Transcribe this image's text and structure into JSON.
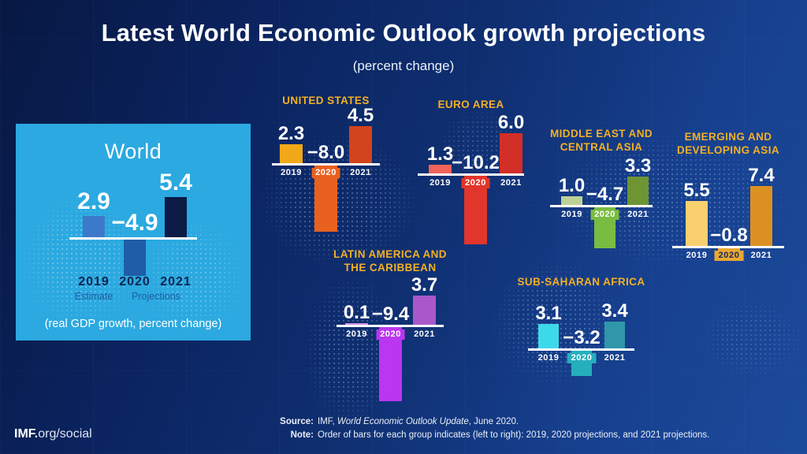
{
  "header": {
    "title": "Latest World Economic Outlook growth projections",
    "subtitle": "(percent change)"
  },
  "world_panel": {
    "title": "World",
    "caption": "(real GDP growth, percent change)",
    "estimate_label": "Estimate",
    "projections_label": "Projections",
    "bg_color": "#2BA9E0"
  },
  "footer": {
    "brand_bold": "IMF.",
    "brand_rest": "org/social",
    "source_label": "Source:",
    "source_pre": "IMF, ",
    "source_italic": "World Economic Outlook Update",
    "source_post": ", June 2020.",
    "note_label": "Note:",
    "note_text": "Order of bars for each group indicates (left to right): 2019, 2020 projections, and 2021 projections."
  },
  "accent_colors": {
    "region_title_gold": "#F3B024",
    "baseline_white": "#FFFFFF",
    "background_navy": "#0F2F71",
    "world_year_navy": "#0D2550"
  },
  "chart_data": [
    {
      "id": "world",
      "type": "bar",
      "title": "World",
      "categories": [
        "2019",
        "2020",
        "2021"
      ],
      "values": [
        2.9,
        -4.9,
        5.4
      ],
      "value_labels": [
        "2.9",
        "−4.9",
        "5.4"
      ],
      "bar_colors": [
        "#3D79CB",
        "#1F5DA9",
        "#0B1B45"
      ],
      "year_label_color": "#0D2550",
      "ylabel": "real GDP growth, percent change"
    },
    {
      "id": "united-states",
      "type": "bar",
      "title": "United States",
      "title_lines": [
        "UNITED STATES"
      ],
      "categories": [
        "2019",
        "2020",
        "2021"
      ],
      "values": [
        2.3,
        -8.0,
        4.5
      ],
      "value_labels": [
        "2.3",
        "−8.0",
        "4.5"
      ],
      "bar_colors": [
        "#F2A818",
        "#E8611F",
        "#D2441B"
      ],
      "year_negative_text": "#FFFFFF"
    },
    {
      "id": "euro-area",
      "type": "bar",
      "title": "Euro Area",
      "title_lines": [
        "EURO AREA"
      ],
      "categories": [
        "2019",
        "2020",
        "2021"
      ],
      "values": [
        1.3,
        -10.2,
        6.0
      ],
      "value_labels": [
        "1.3",
        "−10.2",
        "6.0"
      ],
      "bar_colors": [
        "#F0625A",
        "#E2352B",
        "#D22F28"
      ],
      "year_negative_text": "#FFFFFF"
    },
    {
      "id": "middle-east-and-central-asia",
      "type": "bar",
      "title": "Middle East and Central Asia",
      "title_lines": [
        "MIDDLE EAST AND",
        "CENTRAL ASIA"
      ],
      "categories": [
        "2019",
        "2020",
        "2021"
      ],
      "values": [
        1.0,
        -4.7,
        3.3
      ],
      "value_labels": [
        "1.0",
        "−4.7",
        "3.3"
      ],
      "bar_colors": [
        "#BDD096",
        "#79BC41",
        "#6E9434"
      ],
      "year_negative_text": "#FFFFFF"
    },
    {
      "id": "emerging-and-developing-asia",
      "type": "bar",
      "title": "Emerging and Developing Asia",
      "title_lines": [
        "EMERGING AND",
        "DEVELOPING ASIA"
      ],
      "categories": [
        "2019",
        "2020",
        "2021"
      ],
      "values": [
        5.5,
        -0.8,
        7.4
      ],
      "value_labels": [
        "5.5",
        "−0.8",
        "7.4"
      ],
      "bar_colors": [
        "#F8D06E",
        "#EAA832",
        "#DB9122"
      ],
      "year_negative_text": "#0E2A5E"
    },
    {
      "id": "latin-america-and-the-caribbean",
      "type": "bar",
      "title": "Latin America and the Caribbean",
      "title_lines": [
        "LATIN AMERICA AND",
        "THE CARIBBEAN"
      ],
      "categories": [
        "2019",
        "2020",
        "2021"
      ],
      "values": [
        0.1,
        -9.4,
        3.7
      ],
      "value_labels": [
        "0.1",
        "−9.4",
        "3.7"
      ],
      "bar_colors": [
        "#CF92DF",
        "#BA36F0",
        "#A958C9"
      ],
      "year_negative_text": "#FFFFFF"
    },
    {
      "id": "sub-saharan-africa",
      "type": "bar",
      "title": "Sub-Saharan Africa",
      "title_lines": [
        "SUB-SAHARAN AFRICA"
      ],
      "categories": [
        "2019",
        "2020",
        "2021"
      ],
      "values": [
        3.1,
        -3.2,
        3.4
      ],
      "value_labels": [
        "3.1",
        "−3.2",
        "3.4"
      ],
      "bar_colors": [
        "#3ED9E9",
        "#25AFBD",
        "#2F97A9"
      ],
      "year_negative_text": "#FFFFFF"
    }
  ]
}
